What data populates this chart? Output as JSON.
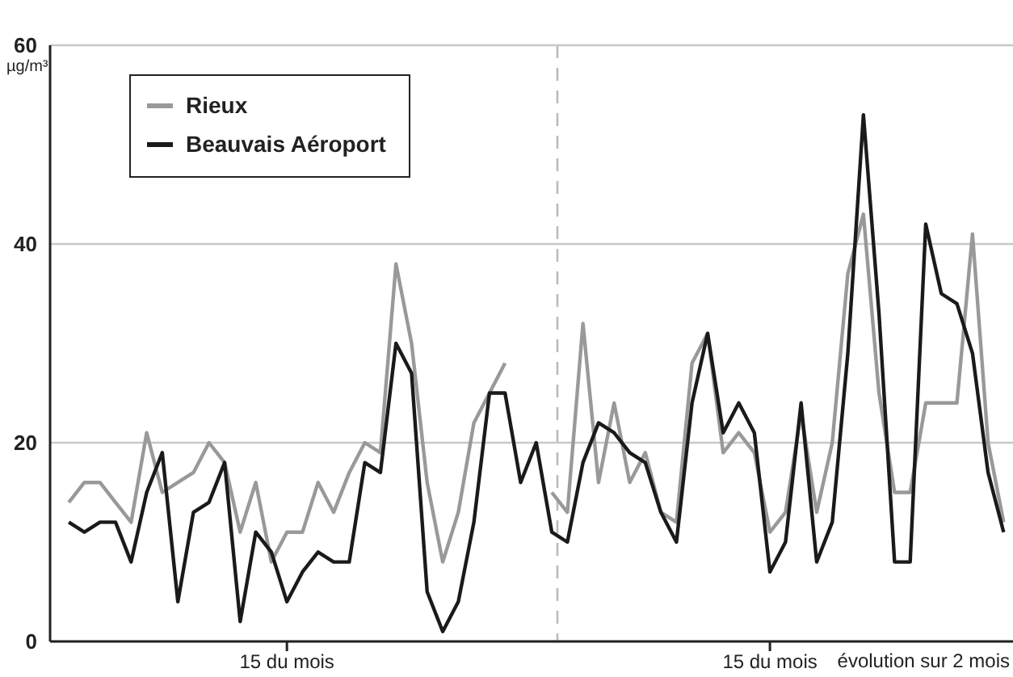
{
  "chart_data": {
    "type": "line",
    "ylabel": "µg/m³",
    "xlabel": "évolution sur 2 mois",
    "categories": [
      null,
      null,
      null,
      null,
      null,
      null,
      null,
      null,
      null,
      null,
      null,
      null,
      null,
      null,
      "15 du mois",
      null,
      null,
      null,
      null,
      null,
      null,
      null,
      null,
      null,
      null,
      null,
      null,
      null,
      null,
      null,
      null,
      null,
      null,
      null,
      null,
      null,
      null,
      null,
      null,
      null,
      null,
      null,
      null,
      null,
      null,
      "15 du mois",
      null,
      null,
      null,
      null,
      null,
      null,
      null,
      null,
      null,
      null,
      null,
      null,
      null,
      null,
      null
    ],
    "series": [
      {
        "name": "Rieux",
        "color": "#999999",
        "values": [
          14,
          16,
          16,
          14,
          12,
          21,
          15,
          16,
          17,
          20,
          18,
          11,
          16,
          8,
          11,
          11,
          16,
          13,
          17,
          20,
          19,
          38,
          30,
          16,
          8,
          13,
          22,
          25,
          28,
          null,
          null,
          15,
          13,
          32,
          16,
          24,
          16,
          19,
          13,
          12,
          28,
          31,
          19,
          21,
          19,
          11,
          13,
          23,
          13,
          20,
          37,
          43,
          25,
          15,
          15,
          24,
          24,
          24,
          41,
          20,
          12
        ]
      },
      {
        "name": "Beauvais Aéroport",
        "color": "#1a1a1a",
        "values": [
          12,
          11,
          12,
          12,
          8,
          15,
          19,
          4,
          13,
          14,
          18,
          2,
          11,
          9,
          4,
          7,
          9,
          8,
          8,
          18,
          17,
          30,
          27,
          5,
          1,
          4,
          12,
          25,
          25,
          16,
          20,
          11,
          10,
          18,
          22,
          21,
          19,
          18,
          13,
          10,
          24,
          31,
          21,
          24,
          21,
          7,
          10,
          24,
          8,
          12,
          29,
          53,
          33,
          8,
          8,
          42,
          35,
          34,
          29,
          17,
          11
        ]
      }
    ],
    "ylim": [
      0,
      60
    ],
    "yticks": [
      0,
      20,
      40,
      60
    ],
    "grid": "y",
    "legend": "top left",
    "marker": "none",
    "line_style": "solid"
  }
}
